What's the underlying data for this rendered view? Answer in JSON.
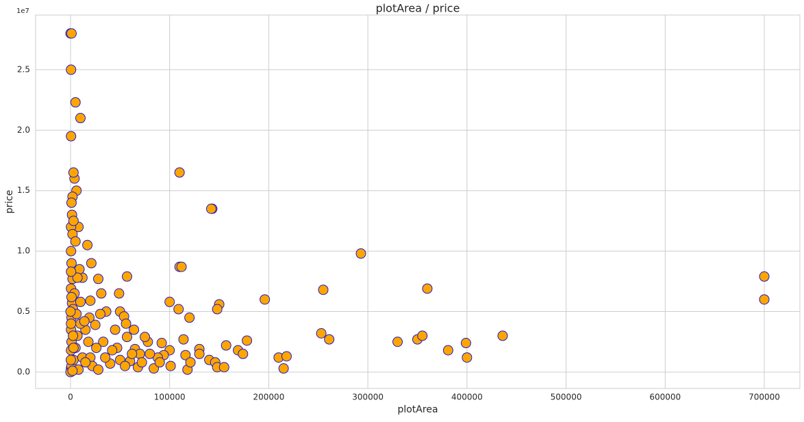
{
  "chart_data": {
    "type": "scatter",
    "title": "plotArea / price",
    "x_label": "plotArea",
    "y_label": "price",
    "offset_text": "1e7",
    "x": [
      0,
      1000,
      500,
      5000,
      10000,
      500,
      110000,
      143000,
      142000,
      293000,
      700000,
      700000,
      360000,
      255000,
      196000,
      150000,
      148000,
      110000,
      112000,
      100000,
      109000,
      120000,
      57000,
      17000,
      21000,
      28000,
      31000,
      49000,
      36000,
      50000,
      54000,
      253000,
      261000,
      330000,
      350000,
      355000,
      381000,
      399000,
      400000,
      436000,
      178000,
      157000,
      169000,
      174000,
      210000,
      218000,
      215000,
      130000,
      130000,
      114000,
      116000,
      118000,
      140000,
      146000,
      148000,
      155000,
      121000,
      100000,
      101000,
      92000,
      94000,
      88000,
      84000,
      78000,
      75000,
      64000,
      57000,
      56000,
      65000,
      70000,
      68000,
      60000,
      45000,
      47000,
      40000,
      33000,
      30000,
      25000,
      20000,
      19000,
      15000,
      12000,
      9000,
      8000,
      6000,
      4000,
      3000,
      2000,
      1000,
      500,
      2000,
      500,
      1000,
      2000,
      500,
      1500,
      2500,
      1000,
      500,
      1000,
      500,
      500,
      0,
      1000,
      3000,
      5000,
      7000,
      10000,
      12000,
      18000,
      20000,
      22000,
      26000,
      28000,
      35000,
      42000,
      50000,
      55000,
      62000,
      72000,
      80000,
      90000,
      4000,
      6000,
      2500,
      3000,
      8000,
      15000,
      1500,
      3000,
      5000,
      7000,
      10000,
      14000,
      500,
      1000,
      0,
      500,
      300,
      2000
    ],
    "values": [
      28000000,
      28000000,
      25000000,
      22300000,
      21000000,
      19500000,
      16500000,
      13500000,
      13500000,
      9800000,
      7900000,
      6000000,
      6900000,
      6800000,
      6000000,
      5600000,
      5200000,
      8700000,
      8700000,
      5800000,
      5200000,
      4500000,
      7900000,
      10500000,
      9000000,
      7700000,
      6500000,
      6500000,
      5000000,
      5000000,
      4600000,
      3200000,
      2700000,
      2500000,
      2700000,
      3000000,
      1800000,
      2400000,
      1200000,
      3000000,
      2600000,
      2200000,
      1800000,
      1500000,
      1200000,
      1300000,
      300000,
      1900000,
      1500000,
      2700000,
      1400000,
      200000,
      1000000,
      800000,
      400000,
      400000,
      800000,
      1800000,
      500000,
      2400000,
      1400000,
      1200000,
      300000,
      2500000,
      2900000,
      3500000,
      2900000,
      4000000,
      1900000,
      1500000,
      400000,
      900000,
      3500000,
      2000000,
      700000,
      2500000,
      4800000,
      3900000,
      5900000,
      4500000,
      3500000,
      7800000,
      8500000,
      12000000,
      15000000,
      16000000,
      16500000,
      14500000,
      14000000,
      12000000,
      11400000,
      10000000,
      9000000,
      7700000,
      6900000,
      5700000,
      5200000,
      4500000,
      3500000,
      2500000,
      1800000,
      300000,
      0,
      500000,
      1000000,
      2000000,
      3000000,
      4000000,
      1200000,
      2500000,
      1200000,
      500000,
      2000000,
      200000,
      1200000,
      1800000,
      1000000,
      500000,
      1500000,
      800000,
      1500000,
      800000,
      6500000,
      4800000,
      3000000,
      2000000,
      200000,
      800000,
      13000000,
      12500000,
      10800000,
      7800000,
      5800000,
      4200000,
      8300000,
      6200000,
      5000000,
      4000000,
      1000000,
      100000
    ],
    "color": "#ffa500",
    "edgecolor": "#1a1acd",
    "grid": true,
    "xlim": [
      -35240,
      735930
    ],
    "xticks": [
      0,
      100000,
      200000,
      300000,
      400000,
      500000,
      600000,
      700000
    ],
    "ylim": [
      -1360000,
      29520000
    ],
    "yticks": [
      {
        "value": 0,
        "label": "0.0"
      },
      {
        "value": 5000000,
        "label": "0.5"
      },
      {
        "value": 10000000,
        "label": "1.0"
      },
      {
        "value": 15000000,
        "label": "1.5"
      },
      {
        "value": 20000000,
        "label": "2.0"
      },
      {
        "value": 25000000,
        "label": "2.5"
      }
    ]
  }
}
